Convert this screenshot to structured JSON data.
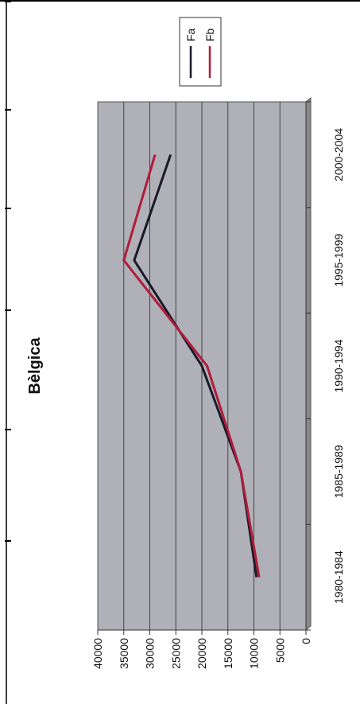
{
  "chart_data": {
    "type": "line",
    "title": "Bèlgica",
    "categories": [
      "1980-1984",
      "1985-1989",
      "1990-1994",
      "1995-1999",
      "2000-2004"
    ],
    "series": [
      {
        "name": "Fa",
        "color": "#1a1a2a",
        "values": [
          9500,
          12500,
          20000,
          33000,
          26000
        ]
      },
      {
        "name": "Fb",
        "color": "#b01c3a",
        "values": [
          9000,
          12500,
          19000,
          35000,
          29000
        ]
      }
    ],
    "ylim": [
      0,
      40000
    ],
    "yticks": [
      0,
      5000,
      10000,
      15000,
      20000,
      25000,
      30000,
      35000,
      40000
    ],
    "grid": true,
    "legend_position": "top-right",
    "plot_background": "#b0b0b8"
  }
}
